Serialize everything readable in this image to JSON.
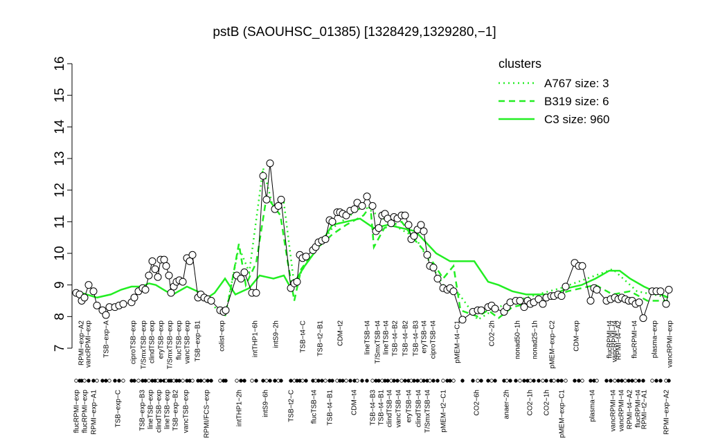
{
  "chart_data": {
    "type": "line",
    "title": "pstB (SAOUHSC_01385) [1328429,1329280,−1]",
    "xlim": [
      100,
      970
    ],
    "ylim": [
      7,
      16
    ],
    "yticks": [
      7,
      8,
      9,
      10,
      11,
      12,
      13,
      14,
      15,
      16
    ],
    "x": [
      110,
      115,
      118,
      122,
      128,
      135,
      140,
      148,
      153,
      158,
      166,
      172,
      178,
      190,
      194,
      200,
      206,
      210,
      215,
      220,
      224,
      228,
      232,
      237,
      240,
      244,
      247,
      251,
      255,
      259,
      264,
      270,
      274,
      278,
      286,
      290,
      295,
      300,
      305,
      318,
      323,
      326,
      342,
      348,
      353,
      364,
      370,
      380,
      385,
      390,
      397,
      402,
      406,
      420,
      425,
      429,
      433,
      437,
      442,
      452,
      456,
      460,
      465,
      470,
      476,
      480,
      487,
      491,
      495,
      500,
      506,
      512,
      516,
      523,
      530,
      538,
      543,
      547,
      552,
      556,
      560,
      565,
      569,
      574,
      580,
      585,
      590,
      594,
      598,
      603,
      608,
      612,
      617,
      621,
      626,
      632,
      640,
      646,
      650,
      655,
      668,
      683,
      690,
      695,
      705,
      710,
      715,
      728,
      732,
      737,
      745,
      751,
      757,
      762,
      766,
      771,
      778,
      784,
      789,
      796,
      800,
      806,
      811,
      817,
      830,
      836,
      841,
      853,
      858,
      862,
      876,
      882,
      888,
      893,
      898,
      903,
      908,
      913,
      918,
      923,
      929,
      942,
      948,
      954,
      962,
      966
    ],
    "values": [
      8.75,
      8.7,
      8.5,
      8.6,
      9.0,
      8.8,
      8.35,
      8.2,
      8.05,
      8.3,
      8.3,
      8.35,
      8.4,
      8.45,
      8.6,
      8.8,
      8.9,
      8.85,
      9.3,
      9.75,
      9.5,
      9.25,
      9.8,
      9.8,
      9.6,
      9.3,
      8.75,
      8.95,
      9.1,
      9.15,
      9.1,
      9.85,
      9.75,
      9.95,
      8.6,
      8.7,
      8.6,
      8.55,
      8.5,
      8.2,
      8.15,
      8.2,
      9.3,
      9.2,
      9.4,
      8.75,
      8.75,
      12.45,
      11.7,
      12.85,
      11.4,
      11.5,
      11.7,
      8.9,
      9.05,
      9.1,
      9.95,
      9.85,
      9.9,
      10.1,
      10.2,
      10.35,
      10.4,
      10.45,
      11.05,
      11.0,
      11.3,
      11.3,
      11.25,
      11.2,
      11.35,
      11.4,
      11.6,
      11.5,
      11.8,
      11.5,
      10.7,
      10.8,
      11.2,
      11.25,
      11.1,
      10.95,
      11.15,
      11.1,
      11.2,
      11.2,
      10.9,
      10.45,
      10.55,
      10.75,
      10.9,
      10.7,
      9.95,
      9.6,
      9.55,
      9.2,
      8.9,
      8.85,
      8.9,
      8.8,
      7.9,
      8.15,
      8.2,
      8.2,
      8.3,
      8.35,
      8.25,
      8.15,
      8.3,
      8.45,
      8.5,
      8.5,
      8.3,
      8.5,
      8.4,
      8.45,
      8.55,
      8.4,
      8.6,
      8.65,
      8.65,
      8.7,
      8.65,
      8.95,
      9.7,
      9.6,
      9.6,
      8.5,
      8.9,
      8.85,
      8.5,
      8.55,
      8.6,
      8.55,
      8.6,
      8.55,
      8.5,
      8.5,
      8.4,
      8.45,
      7.95,
      8.8,
      8.8,
      8.8,
      8.4,
      8.85
    ],
    "legend_title": "clusters",
    "legend_position": "top right",
    "series": [
      {
        "name": "A767 size: 3",
        "color": "#22ee22",
        "dash": "dotted",
        "x": [
          310,
          325,
          345,
          360,
          380,
          395,
          410,
          425,
          440,
          480,
          525,
          560,
          600,
          640,
          660,
          690,
          720,
          760,
          810,
          860,
          885,
          920,
          965
        ],
        "values": [
          8.3,
          8.0,
          10.2,
          9.4,
          12.7,
          11.4,
          11.6,
          9.0,
          9.6,
          10.8,
          11.5,
          11.0,
          10.5,
          9.0,
          8.8,
          7.9,
          8.3,
          8.6,
          8.9,
          9.3,
          9.5,
          8.8,
          8.6
        ]
      },
      {
        "name": "B319 size: 6",
        "color": "#22ee22",
        "dash": "dashed",
        "x": [
          330,
          345,
          355,
          370,
          385,
          395,
          405,
          415,
          425,
          435,
          455,
          480,
          500,
          525,
          535,
          540,
          555,
          580,
          600,
          620,
          640,
          655,
          665,
          690,
          705,
          720,
          740,
          780,
          820,
          860,
          885,
          910,
          935,
          965
        ],
        "values": [
          8.5,
          10.3,
          9.0,
          9.7,
          11.8,
          11.5,
          11.2,
          9.8,
          8.5,
          9.5,
          10.1,
          10.6,
          10.9,
          11.2,
          11.5,
          10.2,
          10.8,
          11.0,
          10.4,
          9.9,
          9.2,
          9.6,
          8.2,
          8.0,
          8.2,
          7.95,
          8.3,
          8.5,
          8.8,
          9.0,
          8.7,
          8.8,
          8.5,
          8.5
        ]
      },
      {
        "name": "C3 size: 960",
        "color": "#22ee22",
        "dash": "solid",
        "x": [
          110,
          140,
          160,
          175,
          190,
          205,
          215,
          225,
          240,
          250,
          270,
          285,
          300,
          310,
          325,
          340,
          360,
          375,
          395,
          410,
          420,
          440,
          460,
          480,
          500,
          520,
          540,
          560,
          600,
          630,
          650,
          665,
          685,
          705,
          720,
          740,
          760,
          800,
          820,
          840,
          860,
          880,
          895,
          910,
          930,
          950,
          965
        ],
        "values": [
          8.8,
          8.6,
          8.7,
          8.85,
          8.95,
          8.95,
          9.05,
          9.0,
          8.8,
          8.7,
          8.95,
          8.8,
          8.6,
          8.75,
          9.2,
          8.7,
          8.9,
          9.3,
          9.2,
          9.3,
          8.9,
          9.6,
          10.2,
          10.9,
          11.0,
          11.1,
          10.8,
          10.9,
          10.7,
          10.0,
          9.75,
          9.75,
          9.75,
          9.1,
          9.0,
          8.8,
          8.7,
          8.7,
          8.9,
          9.0,
          9.2,
          9.45,
          9.45,
          9.2,
          8.95,
          8.75,
          8.6
        ]
      }
    ],
    "xticks": [
      {
        "value": 117,
        "label": "RPMI−exp−A2"
      },
      {
        "value": 127,
        "label": "vancRPMI−exp"
      },
      {
        "value": 153,
        "label": "TSB−exp−A"
      },
      {
        "value": 192,
        "label": "ciproTSB−exp"
      },
      {
        "value": 207,
        "label": "T/SmxTSB−exp"
      },
      {
        "value": 219,
        "label": "clindTSB−exp"
      },
      {
        "value": 232,
        "label": "eryTSB−exp"
      },
      {
        "value": 245,
        "label": "T/SmxTSB−exp"
      },
      {
        "value": 258,
        "label": "flucTSB−exp"
      },
      {
        "value": 270,
        "label": "vancTSB−exp"
      },
      {
        "value": 285,
        "label": "TSB−exp−B1"
      },
      {
        "value": 320,
        "label": "colist−exp"
      },
      {
        "value": 368,
        "label": "intTHP1−6h"
      },
      {
        "value": 398,
        "label": "intS9−2h"
      },
      {
        "value": 437,
        "label": "TSB−t4−C"
      },
      {
        "value": 462,
        "label": "TSB−t2−B1"
      },
      {
        "value": 491,
        "label": "CDM−t2"
      },
      {
        "value": 530,
        "label": "lineTSB−t4"
      },
      {
        "value": 545,
        "label": "T/SmxTSB−t4"
      },
      {
        "value": 557,
        "label": "lineTSB−t4"
      },
      {
        "value": 570,
        "label": "TSB−t4−B2"
      },
      {
        "value": 585,
        "label": "TSB−t4−B2"
      },
      {
        "value": 600,
        "label": "TSB−t4−B3"
      },
      {
        "value": 612,
        "label": "eryTSB−t4"
      },
      {
        "value": 625,
        "label": "ciproTSB−t4"
      },
      {
        "value": 660,
        "label": "pMEM−t4−C1"
      },
      {
        "value": 710,
        "label": "CO2−2h"
      },
      {
        "value": 747,
        "label": "nonad50−1h"
      },
      {
        "value": 772,
        "label": "nonad25−1h"
      },
      {
        "value": 797,
        "label": "pMEM−exp−C2"
      },
      {
        "value": 832,
        "label": "CDM−exp"
      },
      {
        "value": 880,
        "label": "flucRPMI−t4"
      },
      {
        "value": 887,
        "label": "vancRPMI−t4"
      },
      {
        "value": 893,
        "label": "RPMI−t4−A2"
      },
      {
        "value": 916,
        "label": "flucRPMI−t4"
      },
      {
        "value": 945,
        "label": "plasma−exp"
      },
      {
        "value": 967,
        "label": "vancRPMI−exp"
      }
    ],
    "xticks_row2": [
      {
        "value": 110,
        "label": "flucRPMI−exp"
      },
      {
        "value": 122,
        "label": "flucRPMI−exp"
      },
      {
        "value": 135,
        "label": "RPMI−exp−A1"
      },
      {
        "value": 170,
        "label": "TSB−exp−C"
      },
      {
        "value": 205,
        "label": "TSB−exp−B3"
      },
      {
        "value": 217,
        "label": "lineTSB−exp"
      },
      {
        "value": 229,
        "label": "clindTSB−exp"
      },
      {
        "value": 241,
        "label": "lineTSB−exp"
      },
      {
        "value": 253,
        "label": "TSB−exp−B2"
      },
      {
        "value": 268,
        "label": "vancTSB−exp"
      },
      {
        "value": 298,
        "label": "RPMI/FCS−exp"
      },
      {
        "value": 345,
        "label": "intTHP1−2h"
      },
      {
        "value": 383,
        "label": "intS9−6h"
      },
      {
        "value": 420,
        "label": "TSB−t2−C"
      },
      {
        "value": 453,
        "label": "flucTSB−t4"
      },
      {
        "value": 476,
        "label": "TSB−t4−B1"
      },
      {
        "value": 511,
        "label": "CDM−t4"
      },
      {
        "value": 538,
        "label": "TSB−t4−B3"
      },
      {
        "value": 550,
        "label": "TSB−t4−B1"
      },
      {
        "value": 562,
        "label": "clindTSB−t4"
      },
      {
        "value": 575,
        "label": "vancTSB−t4"
      },
      {
        "value": 590,
        "label": "eryTSB−t4"
      },
      {
        "value": 604,
        "label": "clindTSB−t4"
      },
      {
        "value": 617,
        "label": "T/SmxTSB−t4"
      },
      {
        "value": 640,
        "label": "pMEM−t2−C1"
      },
      {
        "value": 688,
        "label": "CO2−6h"
      },
      {
        "value": 731,
        "label": "anaer−2h"
      },
      {
        "value": 765,
        "label": "CO2−1h"
      },
      {
        "value": 789,
        "label": "CO2−1h"
      },
      {
        "value": 811,
        "label": "pMEM−exp−C1"
      },
      {
        "value": 855,
        "label": "plasma−t4"
      },
      {
        "value": 885,
        "label": "vancRPMI−t4"
      },
      {
        "value": 897,
        "label": "vancRPMI−t4"
      },
      {
        "value": 909,
        "label": "RPMI−t4−A2"
      },
      {
        "value": 921,
        "label": "flucRPMI−t4"
      },
      {
        "value": 930,
        "label": "RPMI−t2−A1"
      },
      {
        "value": 962,
        "label": "RPMI−exp−A2"
      }
    ]
  }
}
